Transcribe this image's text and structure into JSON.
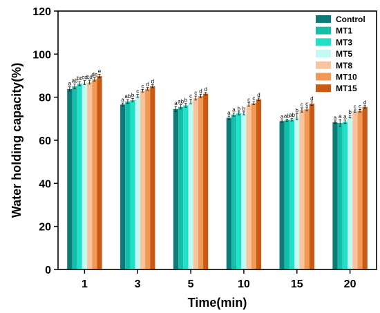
{
  "chart_data": {
    "type": "bar",
    "xlabel": "Time(min)",
    "ylabel": "Water holding capacity(%)",
    "ylim": [
      0,
      120
    ],
    "yticks": [
      0,
      20,
      40,
      60,
      80,
      100,
      120
    ],
    "categories": [
      "1",
      "3",
      "5",
      "10",
      "15",
      "20"
    ],
    "legend_position": "top-right",
    "grid": false,
    "series": [
      {
        "name": "Control",
        "color": "#0E7B7A",
        "values": [
          83.8,
          76.6,
          74.5,
          70.4,
          68.9,
          68.4
        ],
        "errors": [
          1.0,
          0.7,
          1.2,
          0.8,
          0.5,
          0.6
        ],
        "letters": [
          "a",
          "a",
          "a",
          "a",
          "a",
          "a"
        ]
      },
      {
        "name": "MT1",
        "color": "#13BFA8",
        "values": [
          85.0,
          78.0,
          75.5,
          71.9,
          69.3,
          68.0
        ],
        "errors": [
          1.1,
          0.9,
          1.0,
          0.7,
          0.5,
          1.6
        ],
        "letters": [
          "ab",
          "ab",
          "ab",
          "a",
          "ab",
          "a"
        ]
      },
      {
        "name": "MT3",
        "color": "#20E0C8",
        "values": [
          86.3,
          78.6,
          76.2,
          72.5,
          69.6,
          68.6
        ],
        "errors": [
          0.9,
          0.8,
          0.9,
          0.7,
          0.6,
          0.8
        ],
        "letters": [
          "bc",
          "b",
          "b",
          "b",
          "ab",
          "a"
        ]
      },
      {
        "name": "MT5",
        "color": "#C0FAF3",
        "values": [
          86.8,
          80.6,
          78.0,
          72.5,
          70.9,
          71.0
        ],
        "errors": [
          0.9,
          0.7,
          1.1,
          0.7,
          1.4,
          0.6
        ],
        "letters": [
          "cd",
          "c",
          "c",
          "b",
          "b",
          "b"
        ]
      },
      {
        "name": "MT8",
        "color": "#F9C49C",
        "values": [
          87.0,
          83.0,
          79.6,
          76.6,
          74.1,
          73.5
        ],
        "errors": [
          0.9,
          0.6,
          0.9,
          0.8,
          1.0,
          0.6
        ],
        "letters": [
          "cd",
          "c",
          "c",
          "c",
          "c",
          "c"
        ]
      },
      {
        "name": "MT10",
        "color": "#F29A55",
        "values": [
          88.3,
          83.9,
          80.6,
          77.2,
          74.5,
          73.7
        ],
        "errors": [
          0.8,
          0.6,
          0.8,
          0.7,
          0.9,
          0.6
        ],
        "letters": [
          "de",
          "d",
          "d",
          "c",
          "c",
          "c"
        ]
      },
      {
        "name": "MT15",
        "color": "#C85A14",
        "values": [
          89.8,
          85.1,
          81.6,
          79.0,
          77.0,
          75.5
        ],
        "errors": [
          0.8,
          0.7,
          0.6,
          0.6,
          0.8,
          0.6
        ],
        "letters": [
          "e",
          "d",
          "d",
          "d",
          "d",
          "d"
        ]
      }
    ]
  }
}
